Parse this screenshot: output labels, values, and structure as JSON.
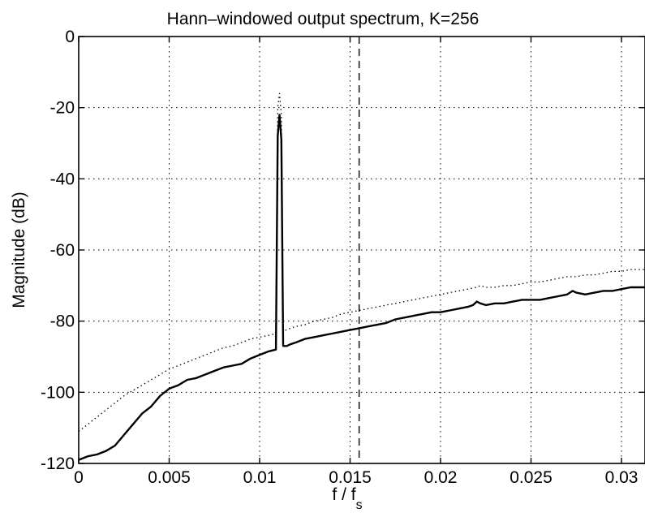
{
  "chart_data": {
    "type": "line",
    "title": "Hann–windowed output spectrum, K=256",
    "xlabel": "f / f",
    "xlabel_sub": "s",
    "ylabel": "Magnitude (dB)",
    "xlim": [
      0,
      0.0313
    ],
    "ylim": [
      -120,
      0
    ],
    "x_ticks": [
      0,
      0.005,
      0.01,
      0.015,
      0.02,
      0.025,
      0.03
    ],
    "x_tick_labels": [
      "0",
      "0.005",
      "0.01",
      "0.015",
      "0.02",
      "0.025",
      "0.03"
    ],
    "y_ticks": [
      0,
      -20,
      -40,
      -60,
      -80,
      -100,
      -120
    ],
    "y_tick_labels": [
      "0",
      "-20",
      "-40",
      "-60",
      "-80",
      "-100",
      "-120"
    ],
    "grid": true,
    "vline": {
      "x": 0.0155,
      "style": "dashed"
    },
    "series": [
      {
        "style": "solid",
        "color": "#000000",
        "x": [
          0,
          0.0005,
          0.001,
          0.0015,
          0.002,
          0.0025,
          0.003,
          0.0035,
          0.004,
          0.0045,
          0.005,
          0.0055,
          0.006,
          0.0065,
          0.007,
          0.0075,
          0.008,
          0.0085,
          0.009,
          0.0095,
          0.01,
          0.0105,
          0.0109,
          0.011,
          0.0111,
          0.0112,
          0.0113,
          0.0115,
          0.0117,
          0.012,
          0.0125,
          0.013,
          0.0135,
          0.014,
          0.0145,
          0.015,
          0.0155,
          0.016,
          0.0165,
          0.017,
          0.0175,
          0.018,
          0.0185,
          0.019,
          0.0195,
          0.02,
          0.0205,
          0.021,
          0.0215,
          0.0218,
          0.022,
          0.0222,
          0.0225,
          0.023,
          0.0235,
          0.024,
          0.0245,
          0.025,
          0.0255,
          0.026,
          0.0265,
          0.027,
          0.0273,
          0.0275,
          0.028,
          0.0285,
          0.029,
          0.0295,
          0.03,
          0.0305,
          0.0313
        ],
        "y": [
          -119,
          -118,
          -117.5,
          -116.5,
          -115,
          -112,
          -109,
          -106,
          -104,
          -101,
          -99,
          -98,
          -96.5,
          -96,
          -95,
          -94,
          -93,
          -92.5,
          -92,
          -90.5,
          -89.5,
          -88.5,
          -88,
          -28,
          -22,
          -29,
          -87,
          -87,
          -86.5,
          -86,
          -85,
          -84.5,
          -84,
          -83.5,
          -83,
          -82.5,
          -82,
          -81.5,
          -81,
          -80.5,
          -79.5,
          -79,
          -78.5,
          -78,
          -77.5,
          -77.5,
          -77,
          -76.5,
          -76,
          -75.5,
          -74.5,
          -75,
          -75.5,
          -75,
          -75,
          -74.5,
          -74,
          -74,
          -74,
          -73.5,
          -73,
          -72.5,
          -71.5,
          -72,
          -72.5,
          -72,
          -71.5,
          -71.5,
          -71,
          -70.5,
          -70.5
        ]
      },
      {
        "style": "dotted",
        "color": "#000000",
        "x": [
          0,
          0.0005,
          0.001,
          0.0015,
          0.002,
          0.0025,
          0.003,
          0.0035,
          0.004,
          0.0045,
          0.005,
          0.0055,
          0.006,
          0.0065,
          0.007,
          0.0075,
          0.008,
          0.0085,
          0.009,
          0.0095,
          0.01,
          0.0105,
          0.0109,
          0.011,
          0.0111,
          0.0112,
          0.0113,
          0.0115,
          0.0117,
          0.012,
          0.0125,
          0.013,
          0.0135,
          0.014,
          0.0145,
          0.015,
          0.0155,
          0.016,
          0.0165,
          0.017,
          0.0175,
          0.018,
          0.0185,
          0.019,
          0.0195,
          0.02,
          0.0205,
          0.021,
          0.0215,
          0.022,
          0.0222,
          0.0225,
          0.023,
          0.0235,
          0.024,
          0.0245,
          0.025,
          0.0255,
          0.026,
          0.0265,
          0.027,
          0.0275,
          0.028,
          0.0285,
          0.029,
          0.0295,
          0.03,
          0.0305,
          0.0313
        ],
        "y": [
          -111,
          -109,
          -107,
          -105,
          -103,
          -101,
          -99.5,
          -98,
          -96.5,
          -95,
          -93.5,
          -92.5,
          -91.5,
          -90.5,
          -89.5,
          -88.5,
          -87.5,
          -87,
          -86,
          -85,
          -84.5,
          -84,
          -83.5,
          -20,
          -16,
          -22,
          -82.5,
          -82.5,
          -82,
          -81.5,
          -81,
          -80,
          -79.5,
          -79,
          -78,
          -77.5,
          -77,
          -76.5,
          -76,
          -75.5,
          -75,
          -74.5,
          -74,
          -73.5,
          -73,
          -72.5,
          -72,
          -71.5,
          -71,
          -70.5,
          -70,
          -70.5,
          -70.5,
          -70,
          -70,
          -69.5,
          -69,
          -69,
          -68.5,
          -68,
          -67.5,
          -67.5,
          -67,
          -67,
          -66.5,
          -66,
          -66,
          -65.5,
          -65.5
        ]
      }
    ]
  }
}
